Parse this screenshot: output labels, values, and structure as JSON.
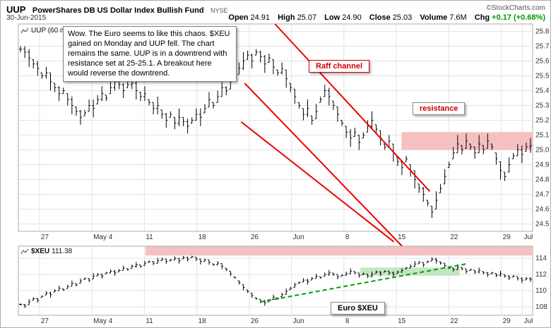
{
  "header": {
    "ticker": "UUP",
    "name": "PowerShares DB US Dollar Index Bullish Fund",
    "exchange": "NYSE",
    "brand": "©StockCharts.com",
    "date": "30-Jun-2015",
    "quote": {
      "open_label": "Open",
      "open": "24.91",
      "high_label": "High",
      "high": "25.07",
      "low_label": "Low",
      "low": "24.90",
      "close_label": "Close",
      "close": "25.03",
      "volume_label": "Volume",
      "volume": "7.6M",
      "chg_label": "Chg",
      "chg": "+0.17 (+0.68%)"
    }
  },
  "annotations": {
    "note_box": "Wow. The Euro seems to like this chaos. $XEU gained on Monday and UUP fell. The chart remains the same. UUP is in a downtrend with resistance set at 25-25.1. A breakout here would reverse the downtrend.",
    "raff_label": "Raff channel",
    "resistance_label": "resistance",
    "euro_label": "Euro $XEU",
    "main_series_label": "UUP (60 min)",
    "lower_series_symbol": "$XEU",
    "lower_series_value": "111.38"
  },
  "colors": {
    "trendline_red": "#ee0000",
    "zone_pink": "#f5c0c0",
    "zone_green": "#c2e6c2",
    "dashed_green": "#00a000",
    "bar_black": "#000000",
    "grid": "#e3e3e3",
    "axis_text": "#333333",
    "panel_border": "#aaaaaa",
    "chg_green": "#009900"
  },
  "chart_data": [
    {
      "id": "main",
      "type": "bar",
      "title": "UUP (60 min)",
      "ylabel": "price",
      "ylim": [
        24.45,
        25.85
      ],
      "ytick_decimals": 1,
      "yticks": [
        25.8,
        25.7,
        25.6,
        25.5,
        25.4,
        25.3,
        25.2,
        25.1,
        25.0,
        24.9,
        24.8,
        24.7,
        24.6,
        24.5
      ],
      "xticks": [
        {
          "label": "27",
          "f": 0.041
        },
        {
          "label": "May 4",
          "f": 0.143
        },
        {
          "label": "11",
          "f": 0.245
        },
        {
          "label": "18",
          "f": 0.347
        },
        {
          "label": "26",
          "f": 0.449
        },
        {
          "label": "Jun",
          "f": 0.531
        },
        {
          "label": "8",
          "f": 0.633
        },
        {
          "label": "15",
          "f": 0.735
        },
        {
          "label": "22",
          "f": 0.837
        },
        {
          "label": "29",
          "f": 0.939
        },
        {
          "label": "Jul",
          "f": 0.98
        }
      ],
      "bar_halfrange_base": 0.02,
      "bar_halfrange_step": 0.01,
      "closes": [
        25.68,
        25.66,
        25.62,
        25.58,
        25.55,
        25.5,
        25.52,
        25.46,
        25.42,
        25.38,
        25.4,
        25.34,
        25.3,
        25.26,
        25.22,
        25.25,
        25.3,
        25.28,
        25.34,
        25.38,
        25.35,
        25.42,
        25.46,
        25.44,
        25.4,
        25.44,
        25.45,
        25.4,
        25.36,
        25.38,
        25.32,
        25.28,
        25.3,
        25.24,
        25.2,
        25.24,
        25.18,
        25.22,
        25.19,
        25.16,
        25.2,
        25.24,
        25.22,
        25.28,
        25.34,
        25.3,
        25.36,
        25.42,
        25.4,
        25.46,
        25.5,
        25.55,
        25.6,
        25.64,
        25.6,
        25.66,
        25.63,
        25.58,
        25.62,
        25.56,
        25.52,
        25.55,
        25.48,
        25.42,
        25.36,
        25.3,
        25.24,
        25.28,
        25.2,
        25.26,
        25.34,
        25.4,
        25.36,
        25.3,
        25.24,
        25.18,
        25.12,
        25.08,
        25.12,
        25.05,
        25.1,
        25.16,
        25.2,
        25.14,
        25.08,
        25.02,
        25.06,
        24.98,
        24.92,
        24.88,
        24.94,
        24.86,
        24.8,
        24.74,
        24.7,
        24.64,
        24.58,
        24.66,
        24.74,
        24.82,
        24.9,
        24.98,
        25.04,
        25.0,
        25.06,
        25.02,
        24.98,
        25.04,
        25.0,
        25.06,
        25.02,
        24.94,
        24.86,
        24.82,
        24.9,
        24.96,
        25.0,
        24.97,
        25.02,
        25.03
      ],
      "zones": [
        {
          "x1f": 0.745,
          "x2f": 1.0,
          "p1": 25.0,
          "p2": 25.12,
          "color": "pink"
        }
      ],
      "trendlines": [
        {
          "x1f": 0.499,
          "p1": 25.85,
          "x2f": 0.8,
          "p2": 24.72,
          "style": "solid",
          "color": "red"
        },
        {
          "x1f": 0.44,
          "p1": 25.45,
          "x2f": 0.76,
          "p2": 24.3,
          "style": "solid",
          "color": "red"
        },
        {
          "x1f": 0.433,
          "p1": 25.19,
          "x2f": 0.73,
          "p2": 24.38,
          "style": "solid",
          "color": "red"
        }
      ]
    },
    {
      "id": "xeu",
      "type": "bar",
      "title": "$XEU",
      "last": 111.38,
      "ylim": [
        106.95,
        115.5
      ],
      "ytick_decimals": 0,
      "yticks": [
        114,
        112,
        110,
        108
      ],
      "xticks": [
        {
          "label": "27",
          "f": 0.041
        },
        {
          "label": "May 4",
          "f": 0.143
        },
        {
          "label": "11",
          "f": 0.245
        },
        {
          "label": "18",
          "f": 0.347
        },
        {
          "label": "26",
          "f": 0.449
        },
        {
          "label": "Jun",
          "f": 0.531
        },
        {
          "label": "8",
          "f": 0.633
        },
        {
          "label": "15",
          "f": 0.735
        },
        {
          "label": "22",
          "f": 0.837
        },
        {
          "label": "29",
          "f": 0.939
        },
        {
          "label": "Jul",
          "f": 0.98
        }
      ],
      "bar_halfrange_base": 0.12,
      "bar_halfrange_step": 0.06,
      "closes": [
        108.3,
        108.1,
        108.6,
        109.0,
        108.8,
        109.3,
        109.7,
        109.5,
        110.0,
        110.3,
        110.1,
        110.5,
        110.9,
        110.7,
        111.2,
        111.5,
        111.3,
        111.8,
        112.0,
        111.8,
        112.2,
        112.4,
        112.2,
        112.5,
        112.8,
        112.6,
        113.0,
        113.2,
        113.0,
        113.4,
        113.6,
        113.4,
        113.7,
        113.9,
        113.6,
        113.8,
        114.0,
        113.7,
        114.1,
        113.9,
        114.2,
        113.9,
        113.6,
        113.8,
        113.5,
        113.2,
        113.4,
        113.0,
        112.6,
        112.1,
        111.6,
        111.0,
        110.4,
        109.9,
        109.4,
        109.0,
        108.7,
        108.5,
        108.8,
        109.2,
        109.0,
        109.5,
        109.9,
        110.3,
        110.7,
        111.0,
        111.3,
        111.1,
        111.5,
        111.8,
        111.6,
        112.0,
        112.2,
        112.0,
        111.7,
        111.9,
        112.1,
        112.4,
        112.2,
        111.9,
        112.1,
        111.8,
        112.0,
        112.3,
        112.1,
        112.4,
        112.2,
        112.0,
        112.3,
        112.5,
        112.8,
        113.0,
        113.3,
        113.5,
        113.2,
        113.6,
        113.9,
        113.7,
        113.4,
        113.1,
        112.8,
        112.6,
        112.9,
        112.7,
        112.4,
        112.6,
        112.3,
        112.5,
        112.2,
        112.0,
        112.2,
        111.9,
        112.1,
        111.8,
        111.6,
        111.8,
        111.5,
        111.3,
        111.5,
        111.38
      ],
      "zones": [
        {
          "x1f": 0.247,
          "x2f": 1.0,
          "p1": 114.35,
          "p2": 115.45,
          "color": "pink"
        },
        {
          "x1f": 0.665,
          "x2f": 0.858,
          "p1": 111.85,
          "p2": 112.85,
          "color": "green"
        }
      ],
      "trendlines": [
        {
          "x1f": 0.47,
          "p1": 108.6,
          "x2f": 0.87,
          "p2": 113.3,
          "style": "dashed",
          "color": "green"
        }
      ]
    }
  ]
}
